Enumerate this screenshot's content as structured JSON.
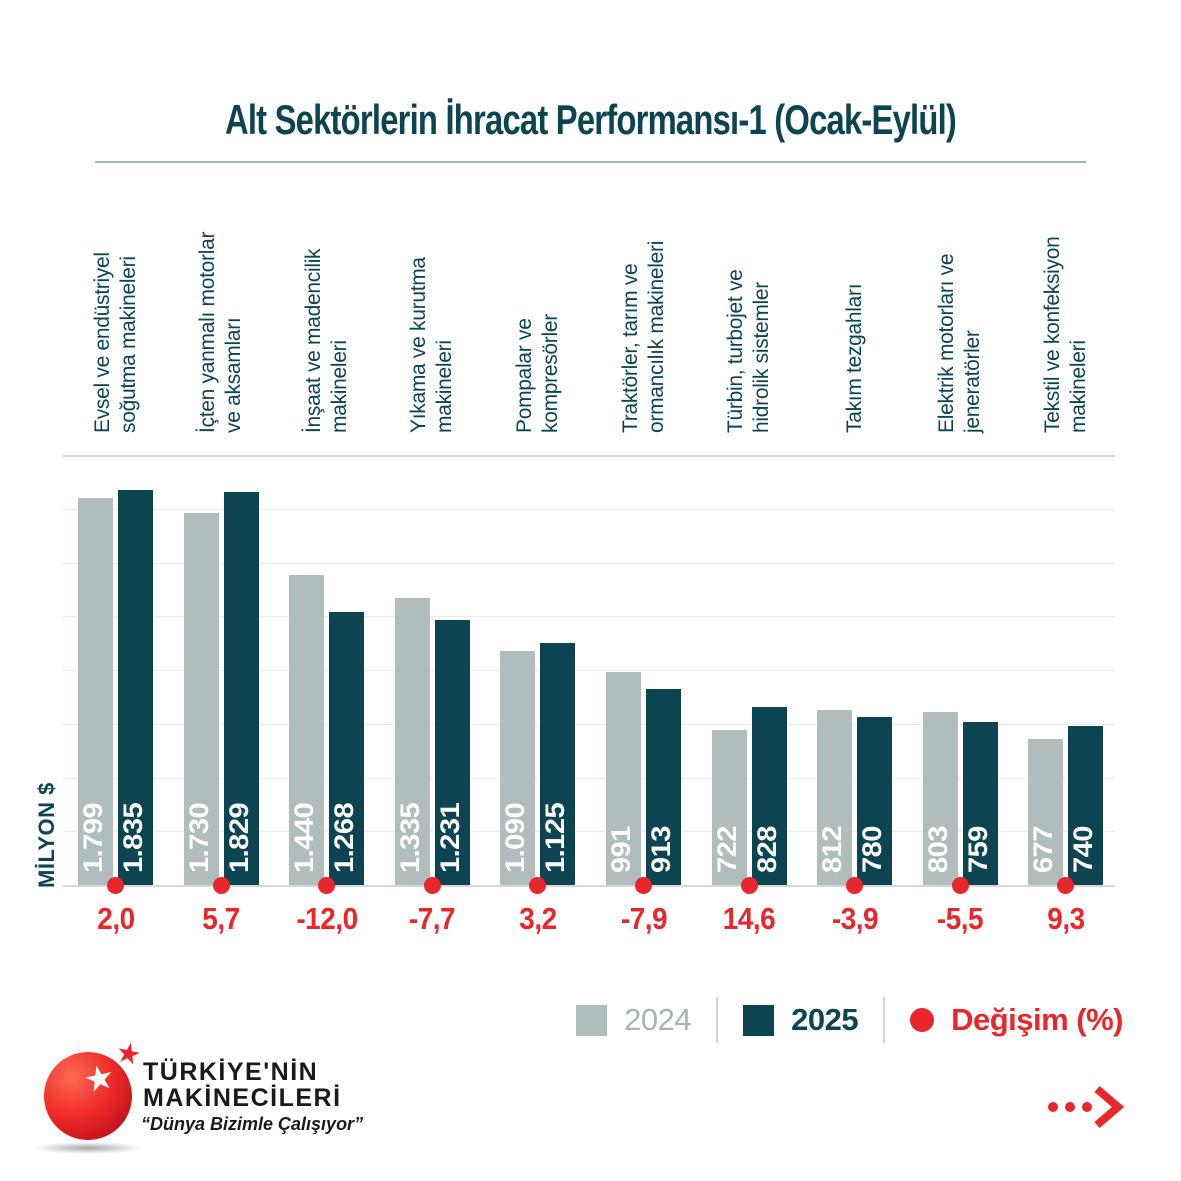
{
  "colors": {
    "teal": "#0c4551",
    "gray": "#b0bdbc",
    "gray_text": "#a7b4b4",
    "red": "#e8262b",
    "grid": "#ececec",
    "grid_edge": "#d7d7d7",
    "rule": "#9eb3ba"
  },
  "chart_data": {
    "type": "bar",
    "title": "Alt Sektörlerin İhracat Performansı-1 (Ocak-Eylül)",
    "ylabel": "MİLYON $",
    "xlabel": "",
    "ylim": [
      0,
      2000
    ],
    "grid_interval": 250,
    "grid": true,
    "legend_position": "bottom-right",
    "categories": [
      "Evsel ve endüstriyel soğutma makineleri",
      "İçten yanmalı motorlar ve aksamları",
      "İnşaat ve madencilik makineleri",
      "Yıkama ve kurutma makineleri",
      "Pompalar ve kompresörler",
      "Traktörler, tarım ve ormancılık makineleri",
      "Türbin, turbojet ve hidrolik sistemler",
      "Takım tezgahları",
      "Elektrik motorları ve jeneratörler",
      "Tekstil ve konfeksiyon makineleri"
    ],
    "category_lines": [
      [
        "Evsel ve endüstriyel",
        "soğutma makineleri"
      ],
      [
        "İçten yanmalı motorlar",
        "ve aksamları"
      ],
      [
        "İnşaat ve madencilik",
        "makineleri"
      ],
      [
        "Yıkama ve kurutma",
        "makineleri"
      ],
      [
        "Pompalar ve",
        "kompresörler"
      ],
      [
        "Traktörler, tarım ve",
        "ormancılık makineleri"
      ],
      [
        "Türbin, turbojet ve",
        "hidrolik sistemler"
      ],
      [
        "Takım tezgahları"
      ],
      [
        "Elektrik motorları ve",
        "jeneratörler"
      ],
      [
        "Tekstil ve konfeksiyon",
        "makineleri"
      ]
    ],
    "series": [
      {
        "name": "2024",
        "values": [
          1799,
          1730,
          1440,
          1335,
          1090,
          991,
          722,
          812,
          803,
          677
        ],
        "labels": [
          "1.799",
          "1.730",
          "1.440",
          "1.335",
          "1.090",
          "991",
          "722",
          "812",
          "803",
          "677"
        ]
      },
      {
        "name": "2025",
        "values": [
          1835,
          1829,
          1268,
          1231,
          1125,
          913,
          828,
          780,
          759,
          740
        ],
        "labels": [
          "1.835",
          "1.829",
          "1.268",
          "1.231",
          "1.125",
          "913",
          "828",
          "780",
          "759",
          "740"
        ]
      }
    ],
    "change_percent": {
      "name": "Değişim (%)",
      "values": [
        2.0,
        5.7,
        -12.0,
        -7.7,
        3.2,
        -7.9,
        14.6,
        -3.9,
        -5.5,
        9.3
      ],
      "labels": [
        "2,0",
        "5,7",
        "-12,0",
        "-7,7",
        "3,2",
        "-7,9",
        "14,6",
        "-3,9",
        "-5,5",
        "9,3"
      ]
    }
  },
  "footer": {
    "brand_line1": "TÜRKİYE'NİN",
    "brand_line2": "MAKİNECİLERİ",
    "tagline": "“Dünya Bizimle Çalışıyor”",
    "white_star": "★",
    "red_star": "★"
  }
}
